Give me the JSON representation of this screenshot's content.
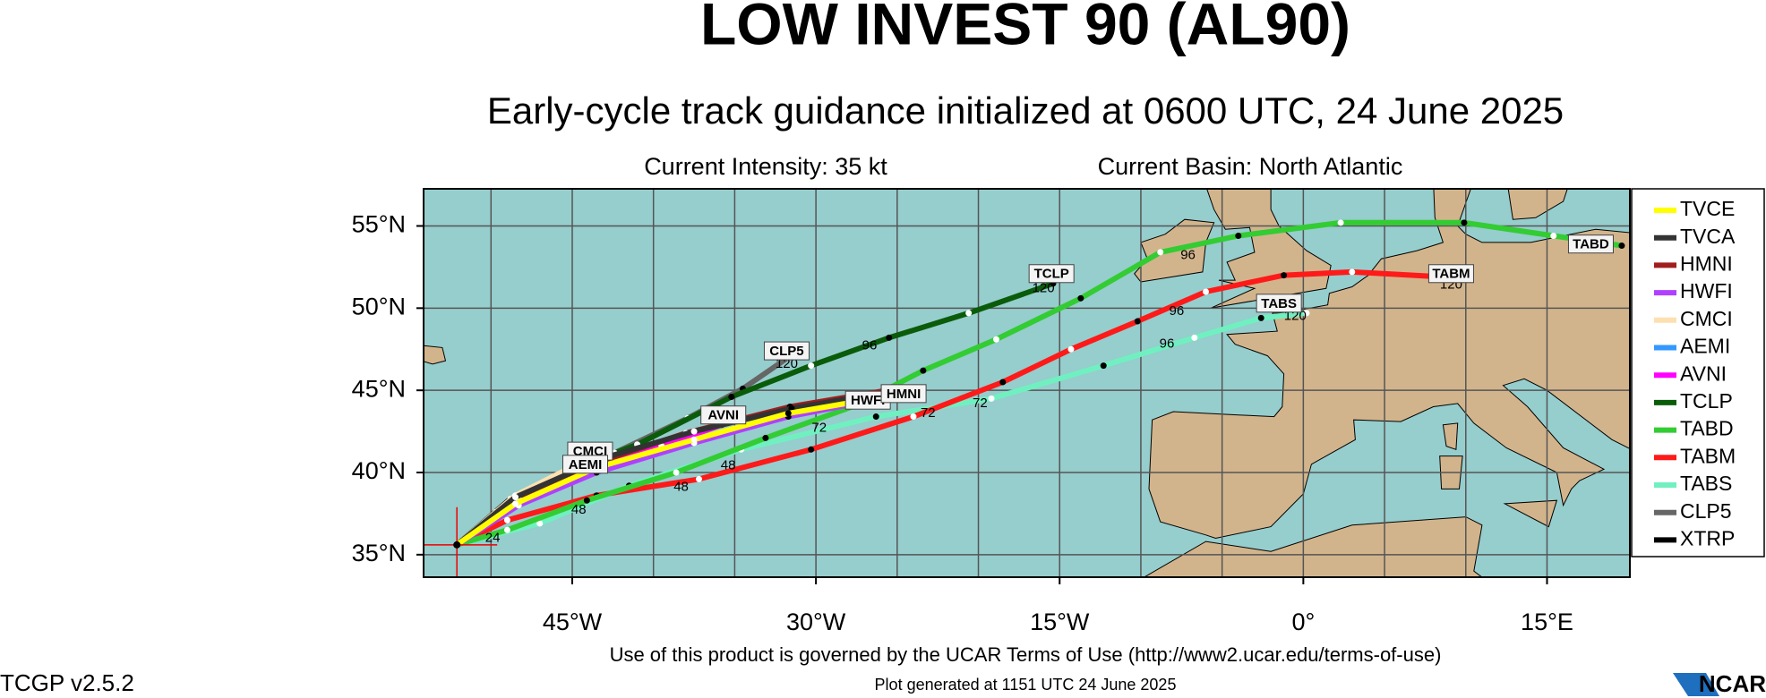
{
  "header": {
    "title": "LOW INVEST 90 (AL90)",
    "subtitle": "Early-cycle track guidance initialized at 0600 UTC, 24 June 2025",
    "intensity": "Current Intensity: 35 kt",
    "basin": "Current Basin: North Atlantic"
  },
  "map": {
    "xlim": [
      -54.15,
      20.1
    ],
    "ylim": [
      33.63,
      57.26
    ],
    "xticks": [
      {
        "value": -45,
        "label": "45°W"
      },
      {
        "value": -30,
        "label": "30°W"
      },
      {
        "value": -15,
        "label": "15°W"
      },
      {
        "value": 0,
        "label": "0°"
      },
      {
        "value": 15,
        "label": "15°E"
      }
    ],
    "yticks": [
      {
        "value": 35,
        "label": "35°N"
      },
      {
        "value": 40,
        "label": "40°N"
      },
      {
        "value": 45,
        "label": "45°N"
      },
      {
        "value": 50,
        "label": "50°N"
      },
      {
        "value": 55,
        "label": "55°N"
      }
    ],
    "grid_lons": [
      -50,
      -45,
      -40,
      -35,
      -30,
      -25,
      -20,
      -15,
      -10,
      -5,
      0,
      5,
      10,
      15
    ],
    "grid_lats": [
      35,
      40,
      45,
      50,
      55
    ],
    "tracks": [
      {
        "name": "TVCE",
        "color": "#ffff00",
        "points": [
          [
            -52.1,
            35.6
          ],
          [
            -48.5,
            38.1
          ],
          [
            -43.5,
            40.3
          ],
          [
            -37.5,
            42
          ],
          [
            -31.7,
            43.6
          ],
          [
            -25.8,
            44.6
          ]
        ]
      },
      {
        "name": "TVCA",
        "color": "#333333",
        "points": [
          [
            -52.1,
            35.6
          ],
          [
            -48.5,
            38.5
          ],
          [
            -43,
            40.9
          ],
          [
            -37.5,
            42.5
          ],
          [
            -31.5,
            43.9
          ],
          [
            -25,
            45
          ]
        ]
      },
      {
        "name": "HMNI",
        "color": "#a01e1e",
        "points": [
          [
            -52.1,
            35.6
          ],
          [
            -48.3,
            38.4
          ],
          [
            -43.5,
            40.6
          ],
          [
            -38,
            42.4
          ],
          [
            -31.6,
            44
          ],
          [
            -25,
            45.1
          ]
        ]
      },
      {
        "name": "HWFI",
        "color": "#b040ff",
        "points": [
          [
            -52.1,
            35.6
          ],
          [
            -48.3,
            38
          ],
          [
            -43.5,
            40
          ],
          [
            -37.5,
            41.8
          ],
          [
            -31.7,
            43.4
          ],
          [
            -26,
            44.5
          ]
        ]
      },
      {
        "name": "CMCI",
        "color": "#fde0b0",
        "points": [
          [
            -52.1,
            35.6
          ],
          [
            -48.5,
            38.6
          ],
          [
            -44.5,
            40.6
          ],
          [
            -42.4,
            41.2
          ]
        ]
      },
      {
        "name": "AEMI",
        "color": "#3399ff",
        "points": [
          [
            -52.1,
            35.6
          ],
          [
            -48.8,
            38.3
          ],
          [
            -45.5,
            40
          ]
        ]
      },
      {
        "name": "AVNI",
        "color": "#ff00ff",
        "points": [
          [
            -52.1,
            35.6
          ],
          [
            -48.5,
            38.2
          ],
          [
            -44,
            40.4
          ],
          [
            -39.5,
            41.6
          ],
          [
            -35.8,
            42.9
          ]
        ]
      },
      {
        "name": "TCLP",
        "color": "#0a5c0a",
        "points": [
          [
            -52.1,
            35.6
          ],
          [
            -49.7,
            37.6
          ],
          [
            -45.6,
            40
          ],
          [
            -41,
            41.7
          ],
          [
            -35.2,
            44.6
          ],
          [
            -30.3,
            46.5
          ],
          [
            -25.5,
            48.2
          ],
          [
            -20.6,
            49.7
          ],
          [
            -15.4,
            51.5
          ]
        ]
      },
      {
        "name": "TABD",
        "color": "#33cc33",
        "points": [
          [
            -52.1,
            35.6
          ],
          [
            -49,
            36.5
          ],
          [
            -44.1,
            38.3
          ],
          [
            -38.6,
            40
          ],
          [
            -33.1,
            42.1
          ],
          [
            -27.5,
            44.1
          ],
          [
            -23.4,
            46.2
          ],
          [
            -18.9,
            48.1
          ],
          [
            -13.7,
            50.6
          ],
          [
            -8.8,
            53.4
          ],
          [
            -4,
            54.4
          ],
          [
            2.3,
            55.2
          ],
          [
            9.9,
            55.2
          ],
          [
            15.4,
            54.4
          ],
          [
            19.6,
            53.8
          ]
        ]
      },
      {
        "name": "TABM",
        "color": "#ff1a1a",
        "points": [
          [
            -52.1,
            35.6
          ],
          [
            -49,
            37.1
          ],
          [
            -43.5,
            38.6
          ],
          [
            -37.2,
            39.6
          ],
          [
            -30.3,
            41.4
          ],
          [
            -24,
            43.4
          ],
          [
            -18.5,
            45.5
          ],
          [
            -14.3,
            47.5
          ],
          [
            -10.2,
            49.2
          ],
          [
            -6,
            51
          ],
          [
            -1.2,
            52
          ],
          [
            3,
            52.2
          ],
          [
            8.5,
            51.9
          ]
        ]
      },
      {
        "name": "TABS",
        "color": "#70f0c0",
        "points": [
          [
            -52.1,
            35.6
          ],
          [
            -47,
            36.9
          ],
          [
            -41.5,
            39.2
          ],
          [
            -34.6,
            41.4
          ],
          [
            -26.3,
            43.4
          ],
          [
            -19.2,
            44.5
          ],
          [
            -12.3,
            46.5
          ],
          [
            -6.7,
            48.2
          ],
          [
            -2.6,
            49.4
          ],
          [
            0.2,
            49.7
          ]
        ]
      },
      {
        "name": "CLP5",
        "color": "#666666",
        "points": [
          [
            -52.1,
            35.6
          ],
          [
            -48.3,
            38.3
          ],
          [
            -42.8,
            41
          ],
          [
            -37.9,
            43.3
          ],
          [
            -34.5,
            45.1
          ],
          [
            -31.7,
            47
          ]
        ]
      },
      {
        "name": "XTRP",
        "color": "#000000",
        "points": [
          [
            -52.1,
            35.6
          ],
          [
            -48.8,
            38.4
          ]
        ]
      }
    ],
    "track_labels": [
      {
        "text": "TCLP",
        "lon": -15.5,
        "lat": 52.1
      },
      {
        "text": "CLP5",
        "lon": -31.8,
        "lat": 47.4
      },
      {
        "text": "AVNI",
        "lon": -35.7,
        "lat": 43.5
      },
      {
        "text": "HWFI",
        "lon": -26.8,
        "lat": 44.4
      },
      {
        "text": "HMNI",
        "lon": -24.6,
        "lat": 44.8
      },
      {
        "text": "CMCI",
        "lon": -43.9,
        "lat": 41.3
      },
      {
        "text": "AEMI",
        "lon": -44.2,
        "lat": 40.5
      },
      {
        "text": "TABS",
        "lon": -1.5,
        "lat": 50.3
      },
      {
        "text": "TABM",
        "lon": 9.1,
        "lat": 52.1
      },
      {
        "text": "TABD",
        "lon": 17.7,
        "lat": 53.9
      }
    ],
    "hour_labels": [
      {
        "text": "24",
        "lon": -49.9,
        "lat": 36.0
      },
      {
        "text": "48",
        "lon": -44.6,
        "lat": 37.7
      },
      {
        "text": "48",
        "lon": -38.3,
        "lat": 39.1
      },
      {
        "text": "48",
        "lon": -35.4,
        "lat": 40.4
      },
      {
        "text": "72",
        "lon": -29.8,
        "lat": 42.7
      },
      {
        "text": "72",
        "lon": -23.1,
        "lat": 43.6
      },
      {
        "text": "72",
        "lon": -19.9,
        "lat": 44.2
      },
      {
        "text": "96",
        "lon": -7.1,
        "lat": 53.2
      },
      {
        "text": "96",
        "lon": -7.8,
        "lat": 49.8
      },
      {
        "text": "96",
        "lon": -8.4,
        "lat": 47.8
      },
      {
        "text": "96",
        "lon": -26.7,
        "lat": 47.7
      },
      {
        "text": "120",
        "lon": -16,
        "lat": 51.2
      },
      {
        "text": "120",
        "lon": -31.8,
        "lat": 46.6
      },
      {
        "text": "120",
        "lon": -0.5,
        "lat": 49.5
      },
      {
        "text": "120",
        "lon": 9.1,
        "lat": 51.4
      }
    ]
  },
  "footer": {
    "terms": "Use of this product is governed by the UCAR Terms of Use (http://www2.ucar.edu/terms-of-use)",
    "generated": "Plot generated at 1151 UTC   24 June 2025",
    "version": "TCGP v2.5.2",
    "logo": "NCAR"
  }
}
